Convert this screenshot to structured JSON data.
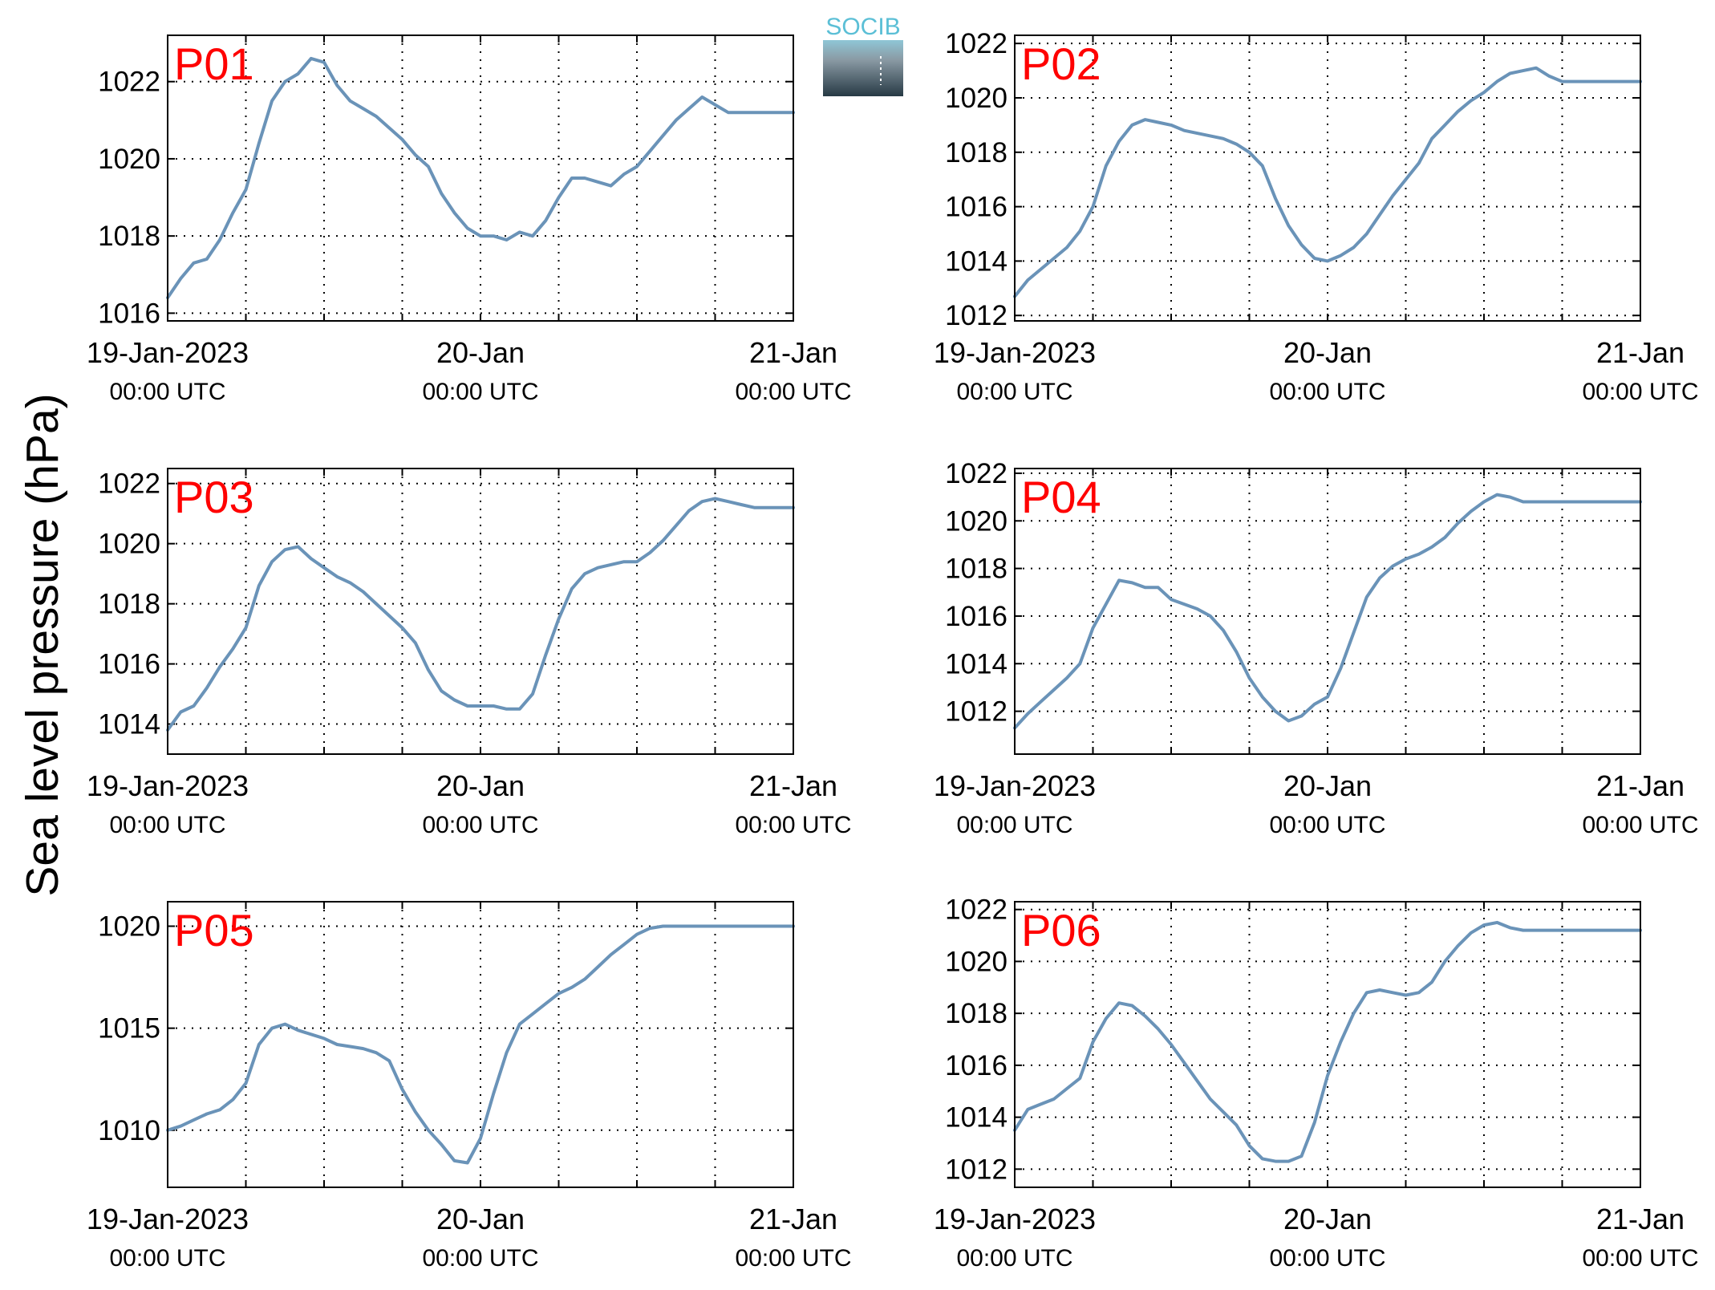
{
  "figure": {
    "ylabel": "Sea level pressure (hPa)",
    "logo_text": "SOCIB",
    "colors": {
      "line": "#6a93b8",
      "panel_label": "#ff0000",
      "axis": "#000000",
      "grid": "#000000"
    }
  },
  "chart_data": [
    {
      "type": "line",
      "panel_label": "P01",
      "x_tick_labels": [
        [
          "19-Jan-2023",
          "00:00 UTC"
        ],
        [
          "20-Jan",
          "00:00 UTC"
        ],
        [
          "21-Jan",
          "00:00 UTC"
        ]
      ],
      "xlim_hours": [
        0,
        48
      ],
      "ylim": [
        1015.8,
        1023.2
      ],
      "yticks": [
        1016,
        1018,
        1020,
        1022
      ],
      "grid": true,
      "series": [
        {
          "t": [
            0,
            1,
            2,
            3,
            4,
            5,
            6,
            7,
            8,
            9,
            10,
            11,
            12,
            13,
            14,
            15,
            16,
            17,
            18,
            19,
            20,
            21,
            22,
            23,
            24,
            25,
            26,
            27,
            28,
            29,
            30,
            31,
            32,
            33,
            34,
            35,
            36,
            37,
            38,
            39,
            40,
            41,
            42,
            43,
            44,
            45,
            46,
            47,
            48
          ],
          "values": [
            1016.4,
            1016.9,
            1017.3,
            1017.4,
            1017.9,
            1018.6,
            1019.2,
            1020.4,
            1021.5,
            1022.0,
            1022.2,
            1022.6,
            1022.5,
            1021.9,
            1021.5,
            1021.3,
            1021.1,
            1020.8,
            1020.5,
            1020.1,
            1019.8,
            1019.1,
            1018.6,
            1018.2,
            1018.0,
            1018.0,
            1017.9,
            1018.1,
            1018.0,
            1018.4,
            1019.0,
            1019.5,
            1019.5,
            1019.4,
            1019.3,
            1019.6,
            1019.8,
            1020.2,
            1020.6,
            1021.0,
            1021.3,
            1021.6,
            1021.4,
            1021.2,
            1021.2,
            1021.2,
            1021.2,
            1021.2,
            1021.2
          ]
        }
      ]
    },
    {
      "type": "line",
      "panel_label": "P02",
      "x_tick_labels": [
        [
          "19-Jan-2023",
          "00:00 UTC"
        ],
        [
          "20-Jan",
          "00:00 UTC"
        ],
        [
          "21-Jan",
          "00:00 UTC"
        ]
      ],
      "xlim_hours": [
        0,
        48
      ],
      "ylim": [
        1011.8,
        1022.3
      ],
      "yticks": [
        1012,
        1014,
        1016,
        1018,
        1020,
        1022
      ],
      "grid": true,
      "series": [
        {
          "t": [
            0,
            1,
            2,
            3,
            4,
            5,
            6,
            7,
            8,
            9,
            10,
            11,
            12,
            13,
            14,
            15,
            16,
            17,
            18,
            19,
            20,
            21,
            22,
            23,
            24,
            25,
            26,
            27,
            28,
            29,
            30,
            31,
            32,
            33,
            34,
            35,
            36,
            37,
            38,
            39,
            40,
            41,
            42,
            43,
            44,
            45,
            46,
            47,
            48
          ],
          "values": [
            1012.7,
            1013.3,
            1013.7,
            1014.1,
            1014.5,
            1015.1,
            1016.0,
            1017.5,
            1018.4,
            1019.0,
            1019.2,
            1019.1,
            1019.0,
            1018.8,
            1018.7,
            1018.6,
            1018.5,
            1018.3,
            1018.0,
            1017.5,
            1016.3,
            1015.3,
            1014.6,
            1014.1,
            1014.0,
            1014.2,
            1014.5,
            1015.0,
            1015.7,
            1016.4,
            1017.0,
            1017.6,
            1018.5,
            1019.0,
            1019.5,
            1019.9,
            1020.2,
            1020.6,
            1020.9,
            1021.0,
            1021.1,
            1020.8,
            1020.6,
            1020.6,
            1020.6,
            1020.6,
            1020.6,
            1020.6,
            1020.6
          ]
        }
      ]
    },
    {
      "type": "line",
      "panel_label": "P03",
      "x_tick_labels": [
        [
          "19-Jan-2023",
          "00:00 UTC"
        ],
        [
          "20-Jan",
          "00:00 UTC"
        ],
        [
          "21-Jan",
          "00:00 UTC"
        ]
      ],
      "xlim_hours": [
        0,
        48
      ],
      "ylim": [
        1013.0,
        1022.5
      ],
      "yticks": [
        1014,
        1016,
        1018,
        1020,
        1022
      ],
      "grid": true,
      "series": [
        {
          "t": [
            0,
            1,
            2,
            3,
            4,
            5,
            6,
            7,
            8,
            9,
            10,
            11,
            12,
            13,
            14,
            15,
            16,
            17,
            18,
            19,
            20,
            21,
            22,
            23,
            24,
            25,
            26,
            27,
            28,
            29,
            30,
            31,
            32,
            33,
            34,
            35,
            36,
            37,
            38,
            39,
            40,
            41,
            42,
            43,
            44,
            45,
            46,
            47,
            48
          ],
          "values": [
            1013.8,
            1014.4,
            1014.6,
            1015.2,
            1015.9,
            1016.5,
            1017.2,
            1018.6,
            1019.4,
            1019.8,
            1019.9,
            1019.5,
            1019.2,
            1018.9,
            1018.7,
            1018.4,
            1018.0,
            1017.6,
            1017.2,
            1016.7,
            1015.8,
            1015.1,
            1014.8,
            1014.6,
            1014.6,
            1014.6,
            1014.5,
            1014.5,
            1015.0,
            1016.3,
            1017.5,
            1018.5,
            1019.0,
            1019.2,
            1019.3,
            1019.4,
            1019.4,
            1019.7,
            1020.1,
            1020.6,
            1021.1,
            1021.4,
            1021.5,
            1021.4,
            1021.3,
            1021.2,
            1021.2,
            1021.2,
            1021.2
          ]
        }
      ]
    },
    {
      "type": "line",
      "panel_label": "P04",
      "x_tick_labels": [
        [
          "19-Jan-2023",
          "00:00 UTC"
        ],
        [
          "20-Jan",
          "00:00 UTC"
        ],
        [
          "21-Jan",
          "00:00 UTC"
        ]
      ],
      "xlim_hours": [
        0,
        48
      ],
      "ylim": [
        1010.2,
        1022.2
      ],
      "yticks": [
        1012,
        1014,
        1016,
        1018,
        1020,
        1022
      ],
      "grid": true,
      "series": [
        {
          "t": [
            0,
            1,
            2,
            3,
            4,
            5,
            6,
            7,
            8,
            9,
            10,
            11,
            12,
            13,
            14,
            15,
            16,
            17,
            18,
            19,
            20,
            21,
            22,
            23,
            24,
            25,
            26,
            27,
            28,
            29,
            30,
            31,
            32,
            33,
            34,
            35,
            36,
            37,
            38,
            39,
            40,
            41,
            42,
            43,
            44,
            45,
            46,
            47,
            48
          ],
          "values": [
            1011.3,
            1011.9,
            1012.4,
            1012.9,
            1013.4,
            1014.0,
            1015.5,
            1016.5,
            1017.5,
            1017.4,
            1017.2,
            1017.2,
            1016.7,
            1016.5,
            1016.3,
            1016.0,
            1015.4,
            1014.5,
            1013.4,
            1012.6,
            1012.0,
            1011.6,
            1011.8,
            1012.3,
            1012.6,
            1013.8,
            1015.3,
            1016.8,
            1017.6,
            1018.1,
            1018.4,
            1018.6,
            1018.9,
            1019.3,
            1019.9,
            1020.4,
            1020.8,
            1021.1,
            1021.0,
            1020.8,
            1020.8,
            1020.8,
            1020.8,
            1020.8,
            1020.8,
            1020.8,
            1020.8,
            1020.8,
            1020.8
          ]
        }
      ]
    },
    {
      "type": "line",
      "panel_label": "P05",
      "x_tick_labels": [
        [
          "19-Jan-2023",
          "00:00 UTC"
        ],
        [
          "20-Jan",
          "00:00 UTC"
        ],
        [
          "21-Jan",
          "00:00 UTC"
        ]
      ],
      "xlim_hours": [
        0,
        48
      ],
      "ylim": [
        1007.2,
        1021.2
      ],
      "yticks": [
        1010,
        1015,
        1020
      ],
      "grid": true,
      "series": [
        {
          "t": [
            0,
            1,
            2,
            3,
            4,
            5,
            6,
            7,
            8,
            9,
            10,
            11,
            12,
            13,
            14,
            15,
            16,
            17,
            18,
            19,
            20,
            21,
            22,
            23,
            24,
            25,
            26,
            27,
            28,
            29,
            30,
            31,
            32,
            33,
            34,
            35,
            36,
            37,
            38,
            39,
            40,
            41,
            42,
            43,
            44,
            45,
            46,
            47,
            48
          ],
          "values": [
            1010.0,
            1010.2,
            1010.5,
            1010.8,
            1011.0,
            1011.5,
            1012.3,
            1014.2,
            1015.0,
            1015.2,
            1014.9,
            1014.7,
            1014.5,
            1014.2,
            1014.1,
            1014.0,
            1013.8,
            1013.4,
            1012.0,
            1010.9,
            1010.0,
            1009.3,
            1008.5,
            1008.4,
            1009.6,
            1011.8,
            1013.8,
            1015.2,
            1015.7,
            1016.2,
            1016.7,
            1017.0,
            1017.4,
            1018.0,
            1018.6,
            1019.1,
            1019.6,
            1019.9,
            1020.0,
            1020.0,
            1020.0,
            1020.0,
            1020.0,
            1020.0,
            1020.0,
            1020.0,
            1020.0,
            1020.0,
            1020.0
          ]
        }
      ]
    },
    {
      "type": "line",
      "panel_label": "P06",
      "x_tick_labels": [
        [
          "19-Jan-2023",
          "00:00 UTC"
        ],
        [
          "20-Jan",
          "00:00 UTC"
        ],
        [
          "21-Jan",
          "00:00 UTC"
        ]
      ],
      "xlim_hours": [
        0,
        48
      ],
      "ylim": [
        1011.3,
        1022.3
      ],
      "yticks": [
        1012,
        1014,
        1016,
        1018,
        1020,
        1022
      ],
      "grid": true,
      "series": [
        {
          "t": [
            0,
            1,
            2,
            3,
            4,
            5,
            6,
            7,
            8,
            9,
            10,
            11,
            12,
            13,
            14,
            15,
            16,
            17,
            18,
            19,
            20,
            21,
            22,
            23,
            24,
            25,
            26,
            27,
            28,
            29,
            30,
            31,
            32,
            33,
            34,
            35,
            36,
            37,
            38,
            39,
            40,
            41,
            42,
            43,
            44,
            45,
            46,
            47,
            48
          ],
          "values": [
            1013.5,
            1014.3,
            1014.5,
            1014.7,
            1015.1,
            1015.5,
            1016.9,
            1017.8,
            1018.4,
            1018.3,
            1017.9,
            1017.4,
            1016.8,
            1016.1,
            1015.4,
            1014.7,
            1014.2,
            1013.7,
            1012.9,
            1012.4,
            1012.3,
            1012.3,
            1012.5,
            1013.8,
            1015.6,
            1016.9,
            1018.0,
            1018.8,
            1018.9,
            1018.8,
            1018.7,
            1018.8,
            1019.2,
            1020.0,
            1020.6,
            1021.1,
            1021.4,
            1021.5,
            1021.3,
            1021.2,
            1021.2,
            1021.2,
            1021.2,
            1021.2,
            1021.2,
            1021.2,
            1021.2,
            1021.2,
            1021.2
          ]
        }
      ]
    }
  ]
}
